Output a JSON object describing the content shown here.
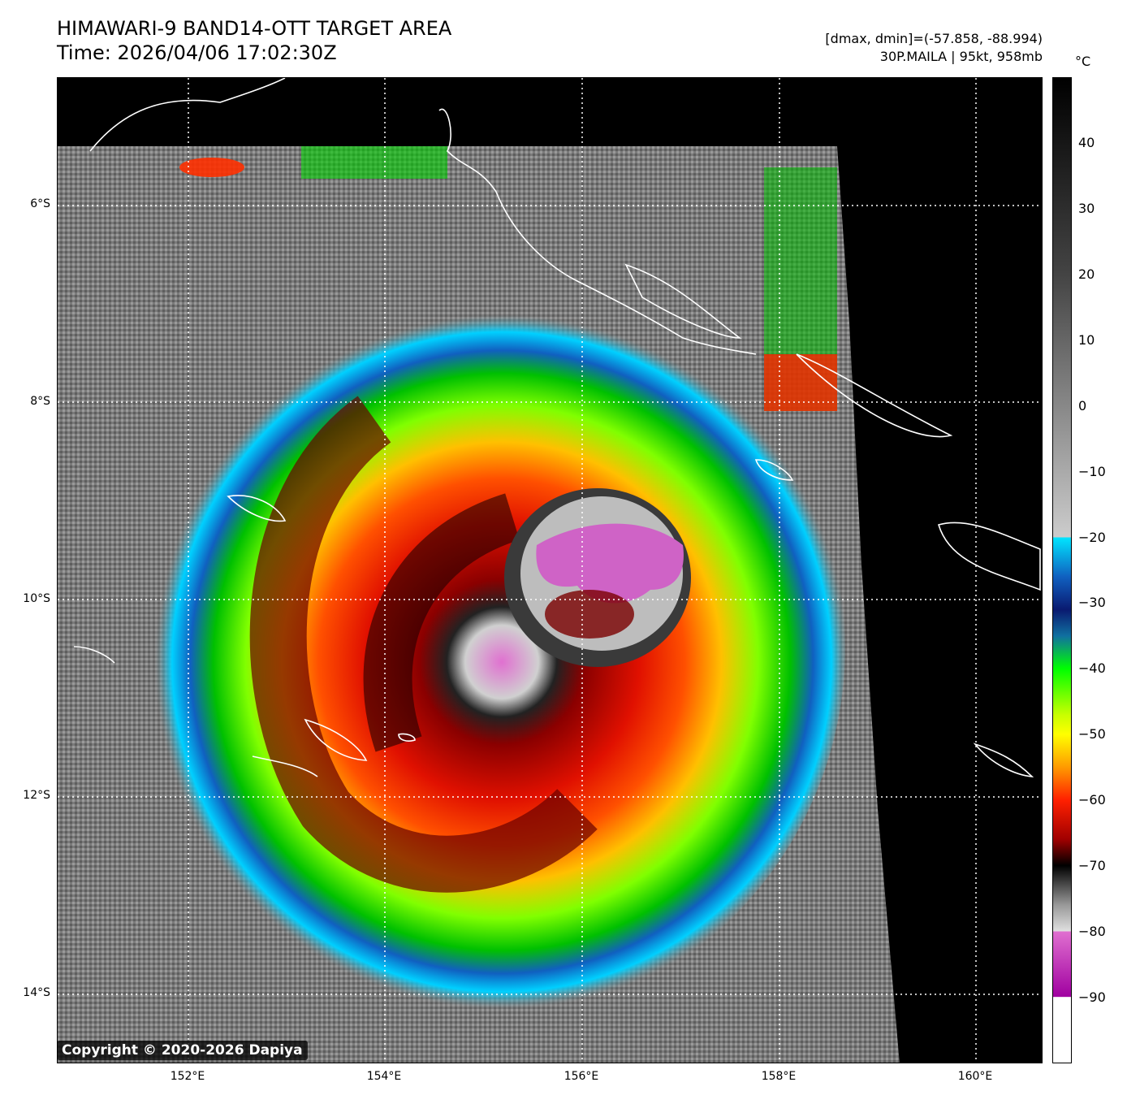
{
  "header": {
    "title_line1": "HIMAWARI-9 BAND14-OTT TARGET AREA",
    "title_line2": "Time: 2026/04/06 17:02:30Z",
    "dmax_dmin": "[dmax, dmin]=(-57.858, -88.994)",
    "storm_info": "30P.MAILA | 95kt, 958mb"
  },
  "map": {
    "lat_labels": [
      "6°S",
      "8°S",
      "10°S",
      "12°S",
      "14°S"
    ],
    "lon_labels": [
      "152°E",
      "154°E",
      "156°E",
      "158°E",
      "160°E"
    ]
  },
  "colorbar": {
    "unit": "°C",
    "ticks": [
      "40",
      "30",
      "20",
      "10",
      "0",
      "−10",
      "−20",
      "−30",
      "−40",
      "−50",
      "−60",
      "−70",
      "−80",
      "−90"
    ],
    "range": [
      -100,
      50
    ],
    "stops": [
      {
        "t": 50,
        "color": "#000000"
      },
      {
        "t": 20,
        "color": "#444444"
      },
      {
        "t": -20,
        "color": "#cccccc"
      },
      {
        "t": -20.01,
        "color": "#00e5ff"
      },
      {
        "t": -26,
        "color": "#1060c0"
      },
      {
        "t": -31,
        "color": "#0a1a70"
      },
      {
        "t": -35,
        "color": "#1070a0"
      },
      {
        "t": -40,
        "color": "#00ff00"
      },
      {
        "t": -47,
        "color": "#c8ff00"
      },
      {
        "t": -50,
        "color": "#ffff00"
      },
      {
        "t": -55,
        "color": "#ff9a00"
      },
      {
        "t": -60,
        "color": "#ff2000"
      },
      {
        "t": -66,
        "color": "#a00000"
      },
      {
        "t": -70,
        "color": "#000000"
      },
      {
        "t": -76,
        "color": "#999999"
      },
      {
        "t": -80,
        "color": "#e0e0e0"
      },
      {
        "t": -80.01,
        "color": "#e070d0"
      },
      {
        "t": -90,
        "color": "#a000a0"
      },
      {
        "t": -90.01,
        "color": "#ffffff"
      },
      {
        "t": -100,
        "color": "#ffffff"
      }
    ]
  },
  "copyright": "Copyright © 2020-2026 Dapiya"
}
